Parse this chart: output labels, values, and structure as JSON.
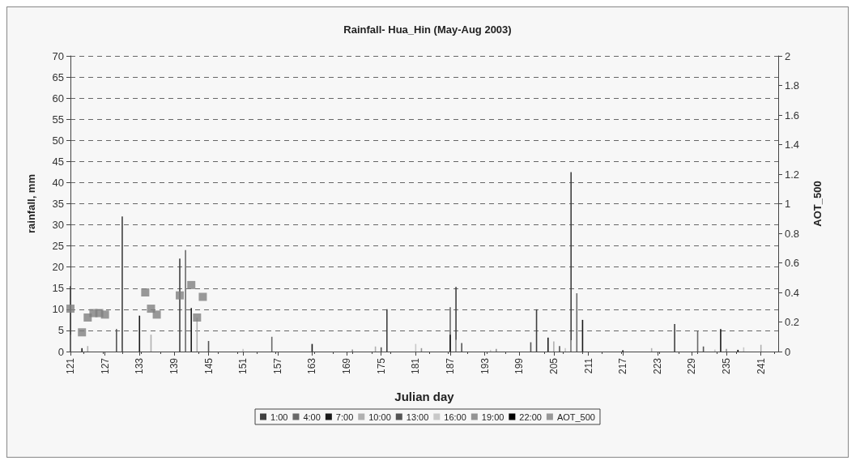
{
  "chart_data": {
    "type": "bar",
    "title": "Rainfall- Hua_Hin (May-Aug 2003)",
    "xlabel": "Julian day",
    "ylabel": "rainfall, mm",
    "y2label": "AOT_500",
    "xlim": [
      121,
      244
    ],
    "xticks": [
      121,
      127,
      133,
      139,
      145,
      151,
      157,
      163,
      169,
      175,
      181,
      187,
      193,
      199,
      205,
      211,
      217,
      223,
      229,
      235,
      241
    ],
    "ylim": [
      0,
      70
    ],
    "yticks": [
      0,
      5,
      10,
      15,
      20,
      25,
      30,
      35,
      40,
      45,
      50,
      55,
      60,
      65,
      70
    ],
    "y2lim": [
      0,
      2
    ],
    "y2ticks": [
      0,
      0.2,
      0.4,
      0.6,
      0.8,
      1,
      1.2,
      1.4,
      1.6,
      1.8,
      2
    ],
    "grid": "y",
    "legend": "bottom",
    "series": [
      {
        "name": "1:00",
        "color": "#404040",
        "x": [
          121,
          130,
          140,
          176,
          188,
          202,
          208,
          226
        ],
        "values": [
          15.5,
          32,
          22,
          10,
          15.3,
          10,
          42.5,
          6.5
        ]
      },
      {
        "name": "4:00",
        "color": "#6a6a6a",
        "x": [
          121,
          130,
          141,
          156,
          187,
          209,
          230
        ],
        "values": [
          4,
          0.8,
          24,
          3.5,
          10.5,
          13.8,
          4.8
        ]
      },
      {
        "name": "7:00",
        "color": "#1a1a1a",
        "x": [
          123,
          133,
          142,
          163,
          187,
          204,
          210,
          234
        ],
        "values": [
          0.8,
          8.5,
          10.3,
          1.8,
          4,
          3.3,
          7.5,
          5.3
        ]
      },
      {
        "name": "10:00",
        "color": "#b0b0b0",
        "x": [
          124,
          135,
          143,
          174,
          188,
          205,
          222,
          241
        ],
        "values": [
          1.3,
          4,
          8,
          1.2,
          2.8,
          2.4,
          0.8,
          1.6
        ]
      },
      {
        "name": "13:00",
        "color": "#555555",
        "x": [
          129,
          145,
          175,
          189,
          201,
          206,
          231
        ],
        "values": [
          5.3,
          2.5,
          1,
          2,
          2.2,
          1.3,
          1.2
        ]
      },
      {
        "name": "16:00",
        "color": "#c8c8c8",
        "x": [
          151,
          181,
          194,
          207,
          233,
          238
        ],
        "values": [
          0.6,
          1.8,
          0.4,
          0.8,
          0.5,
          1
        ]
      },
      {
        "name": "19:00",
        "color": "#949494",
        "x": [
          170,
          182,
          195,
          208,
          235
        ],
        "values": [
          0.5,
          0.8,
          0.6,
          2.7,
          0.6
        ]
      },
      {
        "name": "22:00",
        "color": "#000000",
        "x": [
          217,
          237
        ],
        "values": [
          0.3,
          0.4
        ]
      },
      {
        "name": "AOT_500",
        "type": "scatter",
        "axis": "y2",
        "marker": "square",
        "color": "#7f7f7f",
        "x": [
          121,
          123,
          124,
          125,
          126,
          127,
          134,
          135,
          136,
          140,
          142,
          143,
          144
        ],
        "values": [
          0.29,
          0.13,
          0.23,
          0.26,
          0.26,
          0.25,
          0.4,
          0.29,
          0.25,
          0.38,
          0.45,
          0.23,
          0.37
        ]
      }
    ]
  }
}
